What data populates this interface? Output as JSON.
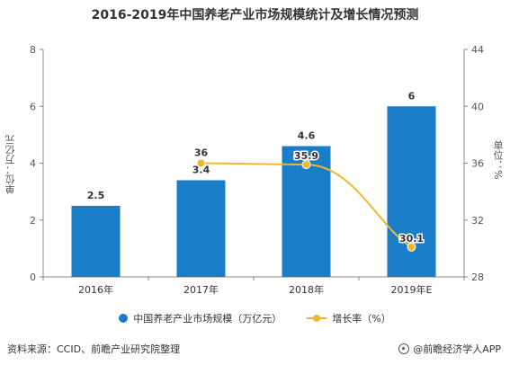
{
  "title": "2016-2019年中国养老产业市场规模统计及增长情况预测",
  "chart_data": {
    "type": "bar",
    "categories": [
      "2016年",
      "2017年",
      "2018年",
      "2019年E"
    ],
    "series": [
      {
        "name": "中国养老产业市场规模（万亿元）",
        "type": "bar",
        "axis": "left",
        "values": [
          2.5,
          3.4,
          4.6,
          6
        ],
        "labels": [
          "2.5",
          "3.4",
          "4.6",
          "6"
        ]
      },
      {
        "name": "增长率（%）",
        "type": "line",
        "axis": "right",
        "values": [
          null,
          36,
          35.9,
          30.1
        ],
        "labels": [
          "",
          "36",
          "35.9",
          "30.1"
        ]
      }
    ],
    "y_left": {
      "label": "单位：万亿元",
      "ylim": [
        0,
        8
      ],
      "ticks": [
        "0",
        "2",
        "4",
        "6",
        "8"
      ]
    },
    "y_right": {
      "label": "单位：%",
      "ylim": [
        28,
        44
      ],
      "ticks": [
        "28",
        "32",
        "36",
        "40",
        "44"
      ]
    },
    "legend_position": "bottom",
    "grid": false,
    "colors": {
      "bar": "#1a7dc8",
      "line": "#f2b731"
    }
  },
  "footer": {
    "source": "资料来源：CCID、前瞻产业研究院整理",
    "brand": "@前瞻经济学人APP"
  },
  "icons": {
    "brand": "brand-logo-icon"
  }
}
